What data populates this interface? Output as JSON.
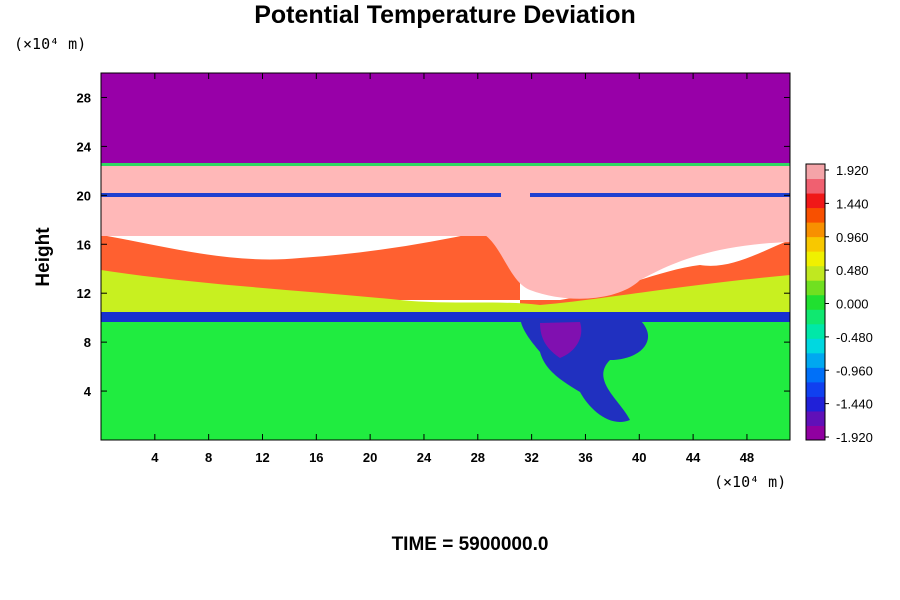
{
  "chart_data": {
    "type": "heatmap",
    "title": "Potential Temperature Deviation",
    "ylabel": "Height",
    "y_unit": "(×10⁴ m)",
    "x_unit": "(×10⁴ m)",
    "footer": "TIME = 5900000.0",
    "xlim": [
      0,
      51.2
    ],
    "ylim": [
      0,
      30
    ],
    "x_ticks": [
      4,
      8,
      12,
      16,
      20,
      24,
      28,
      32,
      36,
      40,
      44,
      48
    ],
    "y_ticks": [
      4,
      8,
      12,
      16,
      20,
      24,
      28
    ],
    "colorbar": {
      "range": [
        -1.92,
        1.92
      ],
      "labels": [
        "1.920",
        "1.440",
        "0.960",
        "0.480",
        "0.000",
        "-0.480",
        "-0.960",
        "-1.440",
        "-1.920"
      ],
      "colors": [
        "#9000a0",
        "#6010b8",
        "#2020d8",
        "#1040f0",
        "#0070f8",
        "#00a8f0",
        "#00d8e0",
        "#00e8a8",
        "#10e870",
        "#20e030",
        "#70e020",
        "#c0e820",
        "#f0f000",
        "#f8c800",
        "#f89000",
        "#f85000",
        "#f01818",
        "#f06070",
        "#f4a4a8"
      ]
    },
    "regions": {
      "top_layer": "#9800a8",
      "upper_layer": "#ffb8b8",
      "lower_layer": "#20ec40",
      "mixing_band": "#ff6030",
      "cold_anomaly": "#2030c0"
    }
  }
}
